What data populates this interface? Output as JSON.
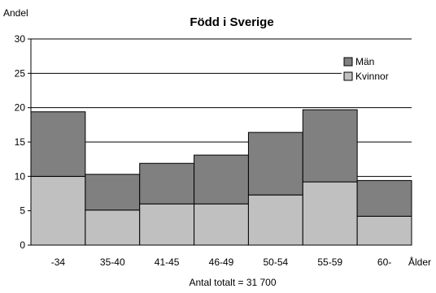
{
  "chart_data": {
    "type": "bar",
    "stacked": true,
    "title": "Född i Sverige",
    "ylabel": "Andel",
    "xlabel": "Ålder",
    "footnote": "Antal totalt = 31 700",
    "categories": [
      "-34",
      "35-40",
      "41-45",
      "46-49",
      "50-54",
      "55-59",
      "60-"
    ],
    "series": [
      {
        "name": "Kvinnor",
        "values": [
          10.0,
          5.1,
          6.0,
          6.0,
          7.3,
          9.2,
          4.2
        ]
      },
      {
        "name": "Män",
        "values": [
          9.4,
          5.2,
          5.9,
          7.1,
          9.1,
          10.5,
          5.2
        ]
      }
    ],
    "ylim": [
      0,
      30
    ],
    "yticks": [
      0,
      5,
      10,
      15,
      20,
      25,
      30
    ],
    "grid": true,
    "legend_position": "top-right",
    "colors": {
      "Kvinnor": "#c0c0c0",
      "Män": "#808080"
    }
  }
}
